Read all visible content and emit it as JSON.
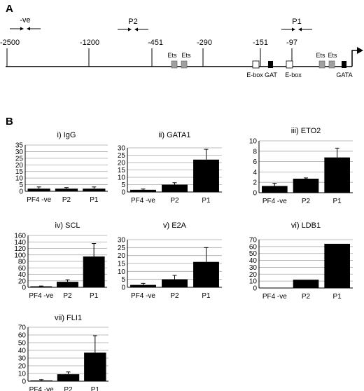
{
  "panel_a": {
    "letter": "A",
    "positions": [
      "-2500",
      "-1200",
      "-451",
      "-290",
      "-151",
      "-97"
    ],
    "primers": [
      "-ve",
      "P2",
      "P1"
    ],
    "elements": [
      {
        "label": "Ets",
        "kind": "grey"
      },
      {
        "label": "Ets",
        "kind": "grey"
      },
      {
        "label": "E-box",
        "kind": "white"
      },
      {
        "label": "GAT",
        "kind": "black"
      },
      {
        "label": "E-box",
        "kind": "white"
      },
      {
        "label": "Ets",
        "kind": "grey"
      },
      {
        "label": "Ets",
        "kind": "grey"
      },
      {
        "label": "GATA",
        "kind": "black"
      }
    ]
  },
  "panel_b": {
    "letter": "B"
  },
  "chart_data": [
    {
      "type": "bar",
      "title": "i) IgG",
      "categories": [
        "PF4 -ve",
        "P2",
        "P1"
      ],
      "values": [
        2,
        2,
        2
      ],
      "errors": [
        1.3,
        0.8,
        1.3
      ],
      "ylim": [
        0,
        35
      ],
      "yticks": [
        0,
        5,
        10,
        15,
        20,
        25,
        30,
        35
      ],
      "grid": true
    },
    {
      "type": "bar",
      "title": "ii) GATA1",
      "categories": [
        "PF4 -ve",
        "P2",
        "P1"
      ],
      "values": [
        1.5,
        5,
        22
      ],
      "errors": [
        0.5,
        1.3,
        7
      ],
      "ylim": [
        0,
        30
      ],
      "yticks": [
        0,
        5,
        10,
        15,
        20,
        25,
        30
      ],
      "grid": true
    },
    {
      "type": "bar",
      "title": "iii) ETO2",
      "categories": [
        "PF4 -ve",
        "P2",
        "P1"
      ],
      "values": [
        1.3,
        2.7,
        6.8
      ],
      "errors": [
        0.5,
        0.15,
        1.8
      ],
      "ylim": [
        0,
        10
      ],
      "yticks": [
        0,
        2,
        4,
        6,
        8,
        10
      ],
      "grid": true
    },
    {
      "type": "bar",
      "title": "iv) SCL",
      "categories": [
        "PF4 -ve",
        "P2",
        "P1"
      ],
      "values": [
        3,
        17,
        95
      ],
      "errors": [
        1,
        6,
        40
      ],
      "ylim": [
        0,
        160
      ],
      "yticks": [
        0,
        20,
        40,
        60,
        80,
        100,
        120,
        140,
        160
      ],
      "grid": true
    },
    {
      "type": "bar",
      "title": "v) E2A",
      "categories": [
        "PF4 -ve",
        "P2",
        "P1"
      ],
      "values": [
        1.5,
        5,
        16
      ],
      "errors": [
        1,
        2.5,
        9
      ],
      "ylim": [
        0,
        30
      ],
      "yticks": [
        0,
        5,
        10,
        15,
        20,
        25,
        30
      ],
      "grid": true
    },
    {
      "type": "bar",
      "title": "vi) LDB1",
      "categories": [
        "PF4 -ve",
        "P2",
        "P1"
      ],
      "values": [
        0,
        12,
        64
      ],
      "errors": [
        0,
        0,
        0
      ],
      "ylim": [
        0,
        70
      ],
      "yticks": [
        0,
        10,
        20,
        30,
        40,
        50,
        60,
        70
      ],
      "grid": true
    },
    {
      "type": "bar",
      "title": "vii) FLI1",
      "categories": [
        "PF4 -ve",
        "P2",
        "P1"
      ],
      "values": [
        1,
        9,
        37
      ],
      "errors": [
        1,
        3,
        22
      ],
      "ylim": [
        0,
        70
      ],
      "yticks": [
        0,
        10,
        20,
        30,
        40,
        50,
        60,
        70
      ],
      "grid": true
    }
  ],
  "colors": {
    "bar": "#000000",
    "grid": "#a6a6a6",
    "grey_box": "#a0a0a0",
    "black_box": "#000000"
  }
}
